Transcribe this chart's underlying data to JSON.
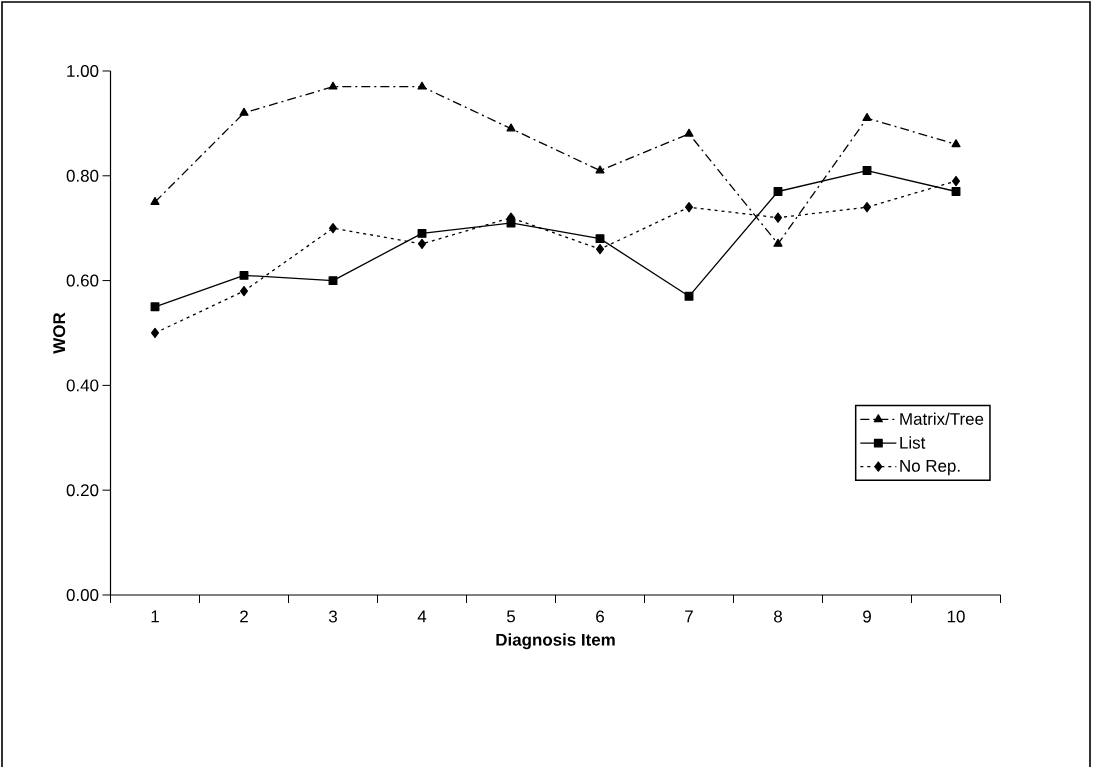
{
  "chart_data": {
    "type": "line",
    "xlabel": "Diagnosis Item",
    "ylabel": "WOR",
    "categories": [
      "1",
      "2",
      "3",
      "4",
      "5",
      "6",
      "7",
      "8",
      "9",
      "10"
    ],
    "ylim": [
      0,
      1
    ],
    "yticks": [
      {
        "value": 0,
        "label": "0.00"
      },
      {
        "value": 0.2,
        "label": "0.20"
      },
      {
        "value": 0.4,
        "label": "0.40"
      },
      {
        "value": 0.6,
        "label": "0.60"
      },
      {
        "value": 0.8,
        "label": "0.80"
      },
      {
        "value": 1,
        "label": "1.00"
      }
    ],
    "grid": false,
    "legend": "right",
    "series": [
      {
        "name": "Matrix/Tree",
        "color": "#000000",
        "marker": "triangle",
        "line_style": "dashed",
        "values": [
          0.75,
          0.92,
          0.97,
          0.97,
          0.89,
          0.81,
          0.88,
          0.67,
          0.91,
          0.86
        ]
      },
      {
        "name": "List",
        "color": "#000000",
        "marker": "square",
        "line_style": "solid",
        "values": [
          0.55,
          0.61,
          0.6,
          0.69,
          0.71,
          0.68,
          0.57,
          0.77,
          0.81,
          0.77
        ]
      },
      {
        "name": "No Rep.",
        "color": "#000000",
        "marker": "diamond",
        "line_style": "dotted",
        "values": [
          0.5,
          0.58,
          0.7,
          0.67,
          0.72,
          0.66,
          0.74,
          0.72,
          0.74,
          0.79
        ]
      }
    ]
  }
}
